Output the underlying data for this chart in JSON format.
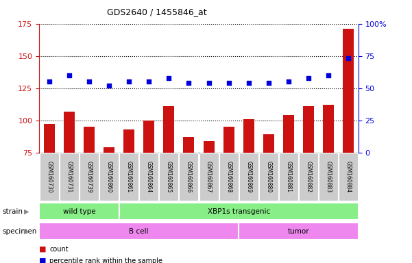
{
  "title": "GDS2640 / 1455846_at",
  "samples": [
    "GSM160730",
    "GSM160731",
    "GSM160739",
    "GSM160860",
    "GSM160861",
    "GSM160864",
    "GSM160865",
    "GSM160866",
    "GSM160867",
    "GSM160868",
    "GSM160869",
    "GSM160880",
    "GSM160881",
    "GSM160882",
    "GSM160883",
    "GSM160884"
  ],
  "counts": [
    97,
    107,
    95,
    79,
    93,
    100,
    111,
    87,
    84,
    95,
    101,
    89,
    104,
    111,
    112,
    171
  ],
  "percentiles": [
    130,
    135,
    130,
    127,
    130,
    130,
    133,
    129,
    129,
    129,
    129,
    129,
    130,
    133,
    135,
    148
  ],
  "ylim_left": [
    75,
    175
  ],
  "ylim_right": [
    0,
    100
  ],
  "yticks_left": [
    75,
    100,
    125,
    150,
    175
  ],
  "yticks_right": [
    0,
    25,
    50,
    75,
    100
  ],
  "strain_groups": [
    {
      "label": "wild type",
      "start": 0,
      "end": 4
    },
    {
      "label": "XBP1s transgenic",
      "start": 4,
      "end": 16
    }
  ],
  "specimen_groups": [
    {
      "label": "B cell",
      "start": 0,
      "end": 10
    },
    {
      "label": "tumor",
      "start": 10,
      "end": 16
    }
  ],
  "strain_color": "#88ee88",
  "specimen_color": "#ee88ee",
  "bar_color": "#cc1111",
  "dot_color": "#0000dd",
  "tick_label_bg": "#cccccc",
  "left_tick_color": "#cc1111",
  "right_tick_color": "#0000dd"
}
